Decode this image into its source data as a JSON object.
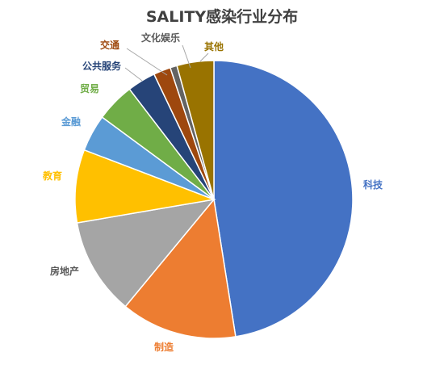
{
  "chart_data": {
    "type": "pie",
    "title": "SALITY感染行业分布",
    "slices": [
      {
        "label": "科技",
        "value": 47.5,
        "color": "#4472C4"
      },
      {
        "label": "制造",
        "value": 13.5,
        "color": "#ED7D31"
      },
      {
        "label": "房地产",
        "value": 11.3,
        "color": "#A5A5A5"
      },
      {
        "label": "教育",
        "value": 8.5,
        "color": "#FFC000"
      },
      {
        "label": "金融",
        "value": 4.3,
        "color": "#5B9BD5"
      },
      {
        "label": "贸易",
        "value": 4.5,
        "color": "#70AD47"
      },
      {
        "label": "公共服务",
        "value": 3.3,
        "color": "#264478"
      },
      {
        "label": "交通",
        "value": 2.0,
        "color": "#9E480E"
      },
      {
        "label": "文化娱乐",
        "value": 0.8,
        "color": "#636363"
      },
      {
        "label": "其他",
        "value": 4.3,
        "color": "#997300"
      }
    ],
    "legend": "none"
  }
}
